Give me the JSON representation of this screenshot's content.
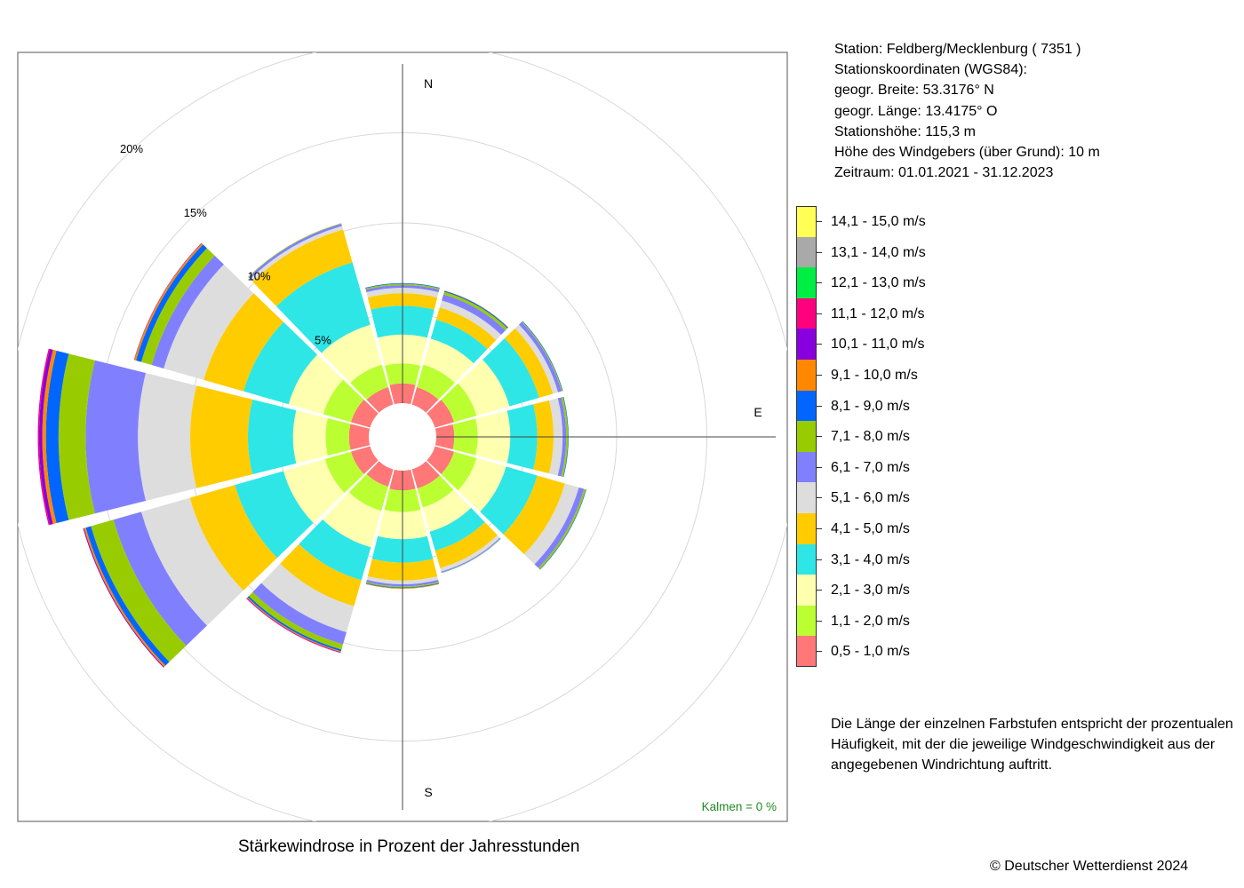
{
  "station": {
    "line1": "Station:  Feldberg/Mecklenburg  ( 7351 )",
    "line2": "Stationskoordinaten (WGS84):",
    "line3": "geogr. Breite: 53.3176° N",
    "line4": "geogr. Länge: 13.4175° O",
    "line5": "Stationshöhe: 115,3 m",
    "line6": "Höhe des Windgebers (über Grund): 10 m",
    "line7": "Zeitraum: 01.01.2021 - 31.12.2023"
  },
  "note": {
    "line1": "Die Länge der einzelnen Farbstufen entspricht der prozentualen",
    "line2": "Häufigkeit, mit der die jeweilige Windgeschwindigkeit aus der",
    "line3": "angegebenen Windrichtung auftritt."
  },
  "copyright": "© Deutscher Wetterdienst  2024",
  "chart_data": {
    "type": "windrose",
    "title": "Stärkewindrose in Prozent der Jahresstunden",
    "calm_label": "Kalmen  =  0 %",
    "calm_color": "#228B22",
    "ring_labels": [
      "5%",
      "10%",
      "15%",
      "20%"
    ],
    "ring_values": [
      5,
      10,
      15,
      20
    ],
    "directions": [
      "N",
      "E",
      "S"
    ],
    "sector_angles_deg": [
      0,
      30,
      60,
      90,
      120,
      150,
      180,
      210,
      240,
      270,
      300,
      330
    ],
    "legend": [
      {
        "label": "14,1 - 15,0 m/s",
        "color": "#FFFF55"
      },
      {
        "label": "13,1 - 14,0 m/s",
        "color": "#A9A9A9"
      },
      {
        "label": "12,1 - 13,0 m/s",
        "color": "#00EE44"
      },
      {
        "label": "11,1 - 12,0 m/s",
        "color": "#FF007F"
      },
      {
        "label": "10,1 - 11,0 m/s",
        "color": "#8800DD"
      },
      {
        "label": "9,1 - 10,0 m/s",
        "color": "#FF8800"
      },
      {
        "label": "8,1 - 9,0 m/s",
        "color": "#0066FF"
      },
      {
        "label": "7,1 - 8,0 m/s",
        "color": "#99CC00"
      },
      {
        "label": "6,1 - 7,0 m/s",
        "color": "#8080FF"
      },
      {
        "label": "5,1 - 6,0 m/s",
        "color": "#DDDDDD"
      },
      {
        "label": "4,1 - 5,0 m/s",
        "color": "#FFCC00"
      },
      {
        "label": "3,1 - 4,0 m/s",
        "color": "#2EE6E6"
      },
      {
        "label": "2,1 - 3,0 m/s",
        "color": "#FFFFB0"
      },
      {
        "label": "1,1 - 2,0 m/s",
        "color": "#BBFF33"
      },
      {
        "label": "0,5 - 1,0 m/s",
        "color": "#FF7777"
      }
    ],
    "class_colors_low_to_high": [
      "#FF7777",
      "#BBFF33",
      "#FFFFB0",
      "#2EE6E6",
      "#FFCC00",
      "#DDDDDD",
      "#8080FF",
      "#99CC00",
      "#0066FF",
      "#FF8800",
      "#8800DD",
      "#FF007F"
    ],
    "sectors_cumulative_percent": [
      [
        1.1,
        2.2,
        3.8,
        5.4,
        6.1,
        6.4,
        6.55,
        6.62,
        6.66
      ],
      [
        1.0,
        2.3,
        3.8,
        4.9,
        5.6,
        6.0,
        6.35,
        6.5,
        6.56,
        6.58
      ],
      [
        1.1,
        2.4,
        4.3,
        6.0,
        6.8,
        7.1,
        7.3,
        7.35,
        7.38
      ],
      [
        1.0,
        2.3,
        4.1,
        5.6,
        6.5,
        7.0,
        7.2,
        7.3,
        7.33
      ],
      [
        1.1,
        2.4,
        4.1,
        5.9,
        7.5,
        8.3,
        8.6,
        8.7,
        8.73
      ],
      [
        1.1,
        2.2,
        3.6,
        4.7,
        5.7,
        5.9,
        5.95,
        5.97,
        5.98
      ],
      [
        1.1,
        2.3,
        3.8,
        5.1,
        6.1,
        6.3,
        6.42,
        6.48,
        6.52,
        6.55
      ],
      [
        1.0,
        2.4,
        4.5,
        6.4,
        7.9,
        9.4,
        10.1,
        10.4,
        10.5,
        10.55,
        10.58,
        10.6
      ],
      [
        1.1,
        2.6,
        5.0,
        7.8,
        10.4,
        13.2,
        14.8,
        16.1,
        16.4,
        16.5,
        16.55
      ],
      [
        1.1,
        2.4,
        4.2,
        6.7,
        9.9,
        12.8,
        15.7,
        17.2,
        17.9,
        18.1,
        18.28,
        18.35
      ],
      [
        1.1,
        2.7,
        4.7,
        7.3,
        9.6,
        11.9,
        12.6,
        13.2,
        13.5,
        13.6,
        13.62
      ],
      [
        1.0,
        2.3,
        4.6,
        8.2,
        10.1,
        10.3,
        10.43,
        10.46
      ]
    ]
  }
}
